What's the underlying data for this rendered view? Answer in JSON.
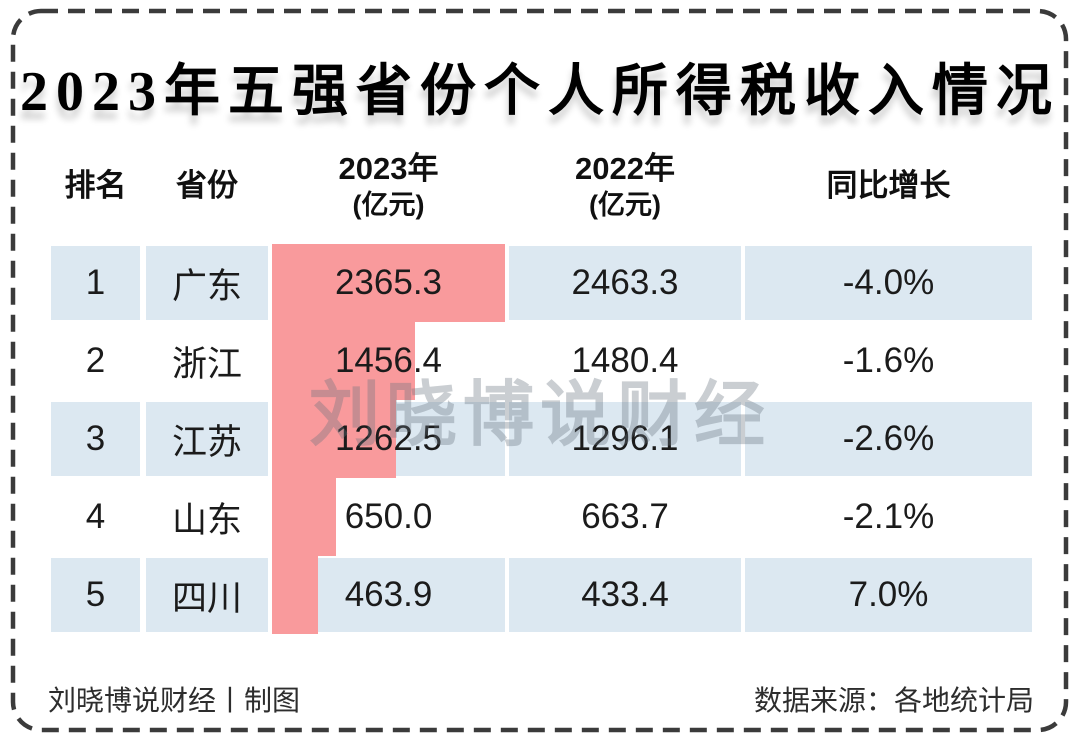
{
  "title": "2023年五强省份个人所得税收入情况",
  "header": {
    "rank": "排名",
    "province": "省份",
    "y2023": "2023年",
    "y2023_unit": "(亿元)",
    "y2022": "2022年",
    "y2022_unit": "(亿元)",
    "growth": "同比增长"
  },
  "table": {
    "rows": [
      {
        "rank": "1",
        "province": "广东",
        "v2023": "2365.3",
        "v2022": "2463.3",
        "growth": "-4.0%"
      },
      {
        "rank": "2",
        "province": "浙江",
        "v2023": "1456.4",
        "v2022": "1480.4",
        "growth": "-1.6%"
      },
      {
        "rank": "3",
        "province": "江苏",
        "v2023": "1262.5",
        "v2022": "1296.1",
        "growth": "-2.6%"
      },
      {
        "rank": "4",
        "province": "山东",
        "v2023": "650.0",
        "v2022": "663.7",
        "growth": "-2.1%"
      },
      {
        "rank": "5",
        "province": "四川",
        "v2023": "463.9",
        "v2022": "433.4",
        "growth": "7.0%"
      }
    ]
  },
  "watermark": "刘晓博说财经",
  "footer": {
    "left": "刘晓博说财经丨制图",
    "right": "数据来源：各地统计局"
  },
  "colors": {
    "bar": "#F99A9C",
    "row_highlight": "#DCE8F1",
    "border": "#3B3B3B",
    "text": "#1B1B1B"
  },
  "chart_data": {
    "type": "bar",
    "orientation": "horizontal",
    "title": "2023年五强省份个人所得税收入情况",
    "categories": [
      "广东",
      "浙江",
      "江苏",
      "山东",
      "四川"
    ],
    "series": [
      {
        "name": "2023年(亿元)",
        "values": [
          2365.3,
          1456.4,
          1262.5,
          650.0,
          463.9
        ]
      },
      {
        "name": "2022年(亿元)",
        "values": [
          2463.3,
          1480.4,
          1296.1,
          663.7,
          433.4
        ]
      }
    ],
    "yoy_growth_pct": [
      -4.0,
      -1.6,
      -2.6,
      -2.1,
      7.0
    ],
    "bar_axis_max": 2365.3,
    "legend_position": "none",
    "grid": false,
    "notes": "bars drawn only for 2023 values, width proportional to value; alternating row highlight on ranks 1,3,5"
  }
}
